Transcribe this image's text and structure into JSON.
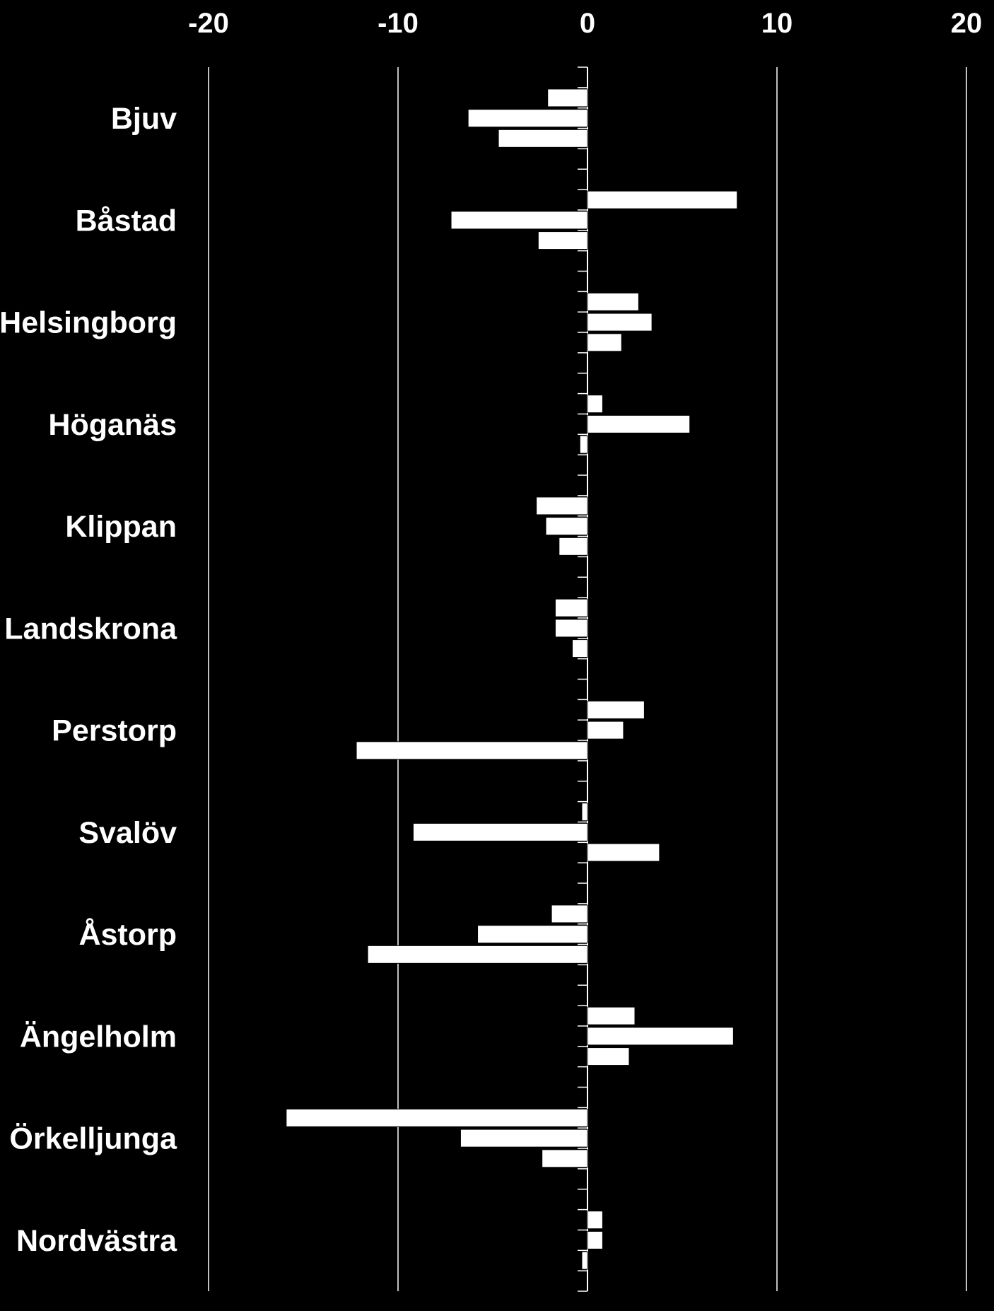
{
  "chart_data": {
    "type": "bar",
    "orientation": "horizontal",
    "title": "",
    "xlabel": "",
    "ylabel": "",
    "xlim": [
      -20,
      20
    ],
    "x_ticks": [
      -20,
      -10,
      0,
      10,
      20
    ],
    "x_tick_labels": [
      "-20",
      "-10",
      "0",
      "10",
      "20"
    ],
    "x_axis_position": "top",
    "grid": "vertical",
    "legend": "none",
    "categories": [
      "Bjuv",
      "Båstad",
      "Helsingborg",
      "Höganäs",
      "Klippan",
      "Landskrona",
      "Perstorp",
      "Svalöv",
      "Åstorp",
      "Ängelholm",
      "Örkelljunga",
      "Nordvästra"
    ],
    "series": [
      {
        "values": [
          -2.1,
          7.9,
          2.7,
          0.8,
          -2.7,
          -1.7,
          3.0,
          -0.3,
          -1.9,
          2.5,
          -15.9,
          0.8
        ]
      },
      {
        "values": [
          -6.3,
          -7.2,
          3.4,
          5.4,
          -2.2,
          -1.7,
          1.9,
          -9.2,
          -5.8,
          7.7,
          -6.7,
          0.8
        ]
      },
      {
        "values": [
          -4.7,
          -2.6,
          1.8,
          -0.4,
          -1.5,
          -0.8,
          -12.2,
          3.8,
          -11.6,
          2.2,
          -2.4,
          -0.3
        ]
      }
    ],
    "colors": {
      "background": "#000000",
      "bar_fill": "#ffffff",
      "bar_stroke": "#000000",
      "axis": "#ffffff",
      "text": "#ffffff"
    }
  }
}
